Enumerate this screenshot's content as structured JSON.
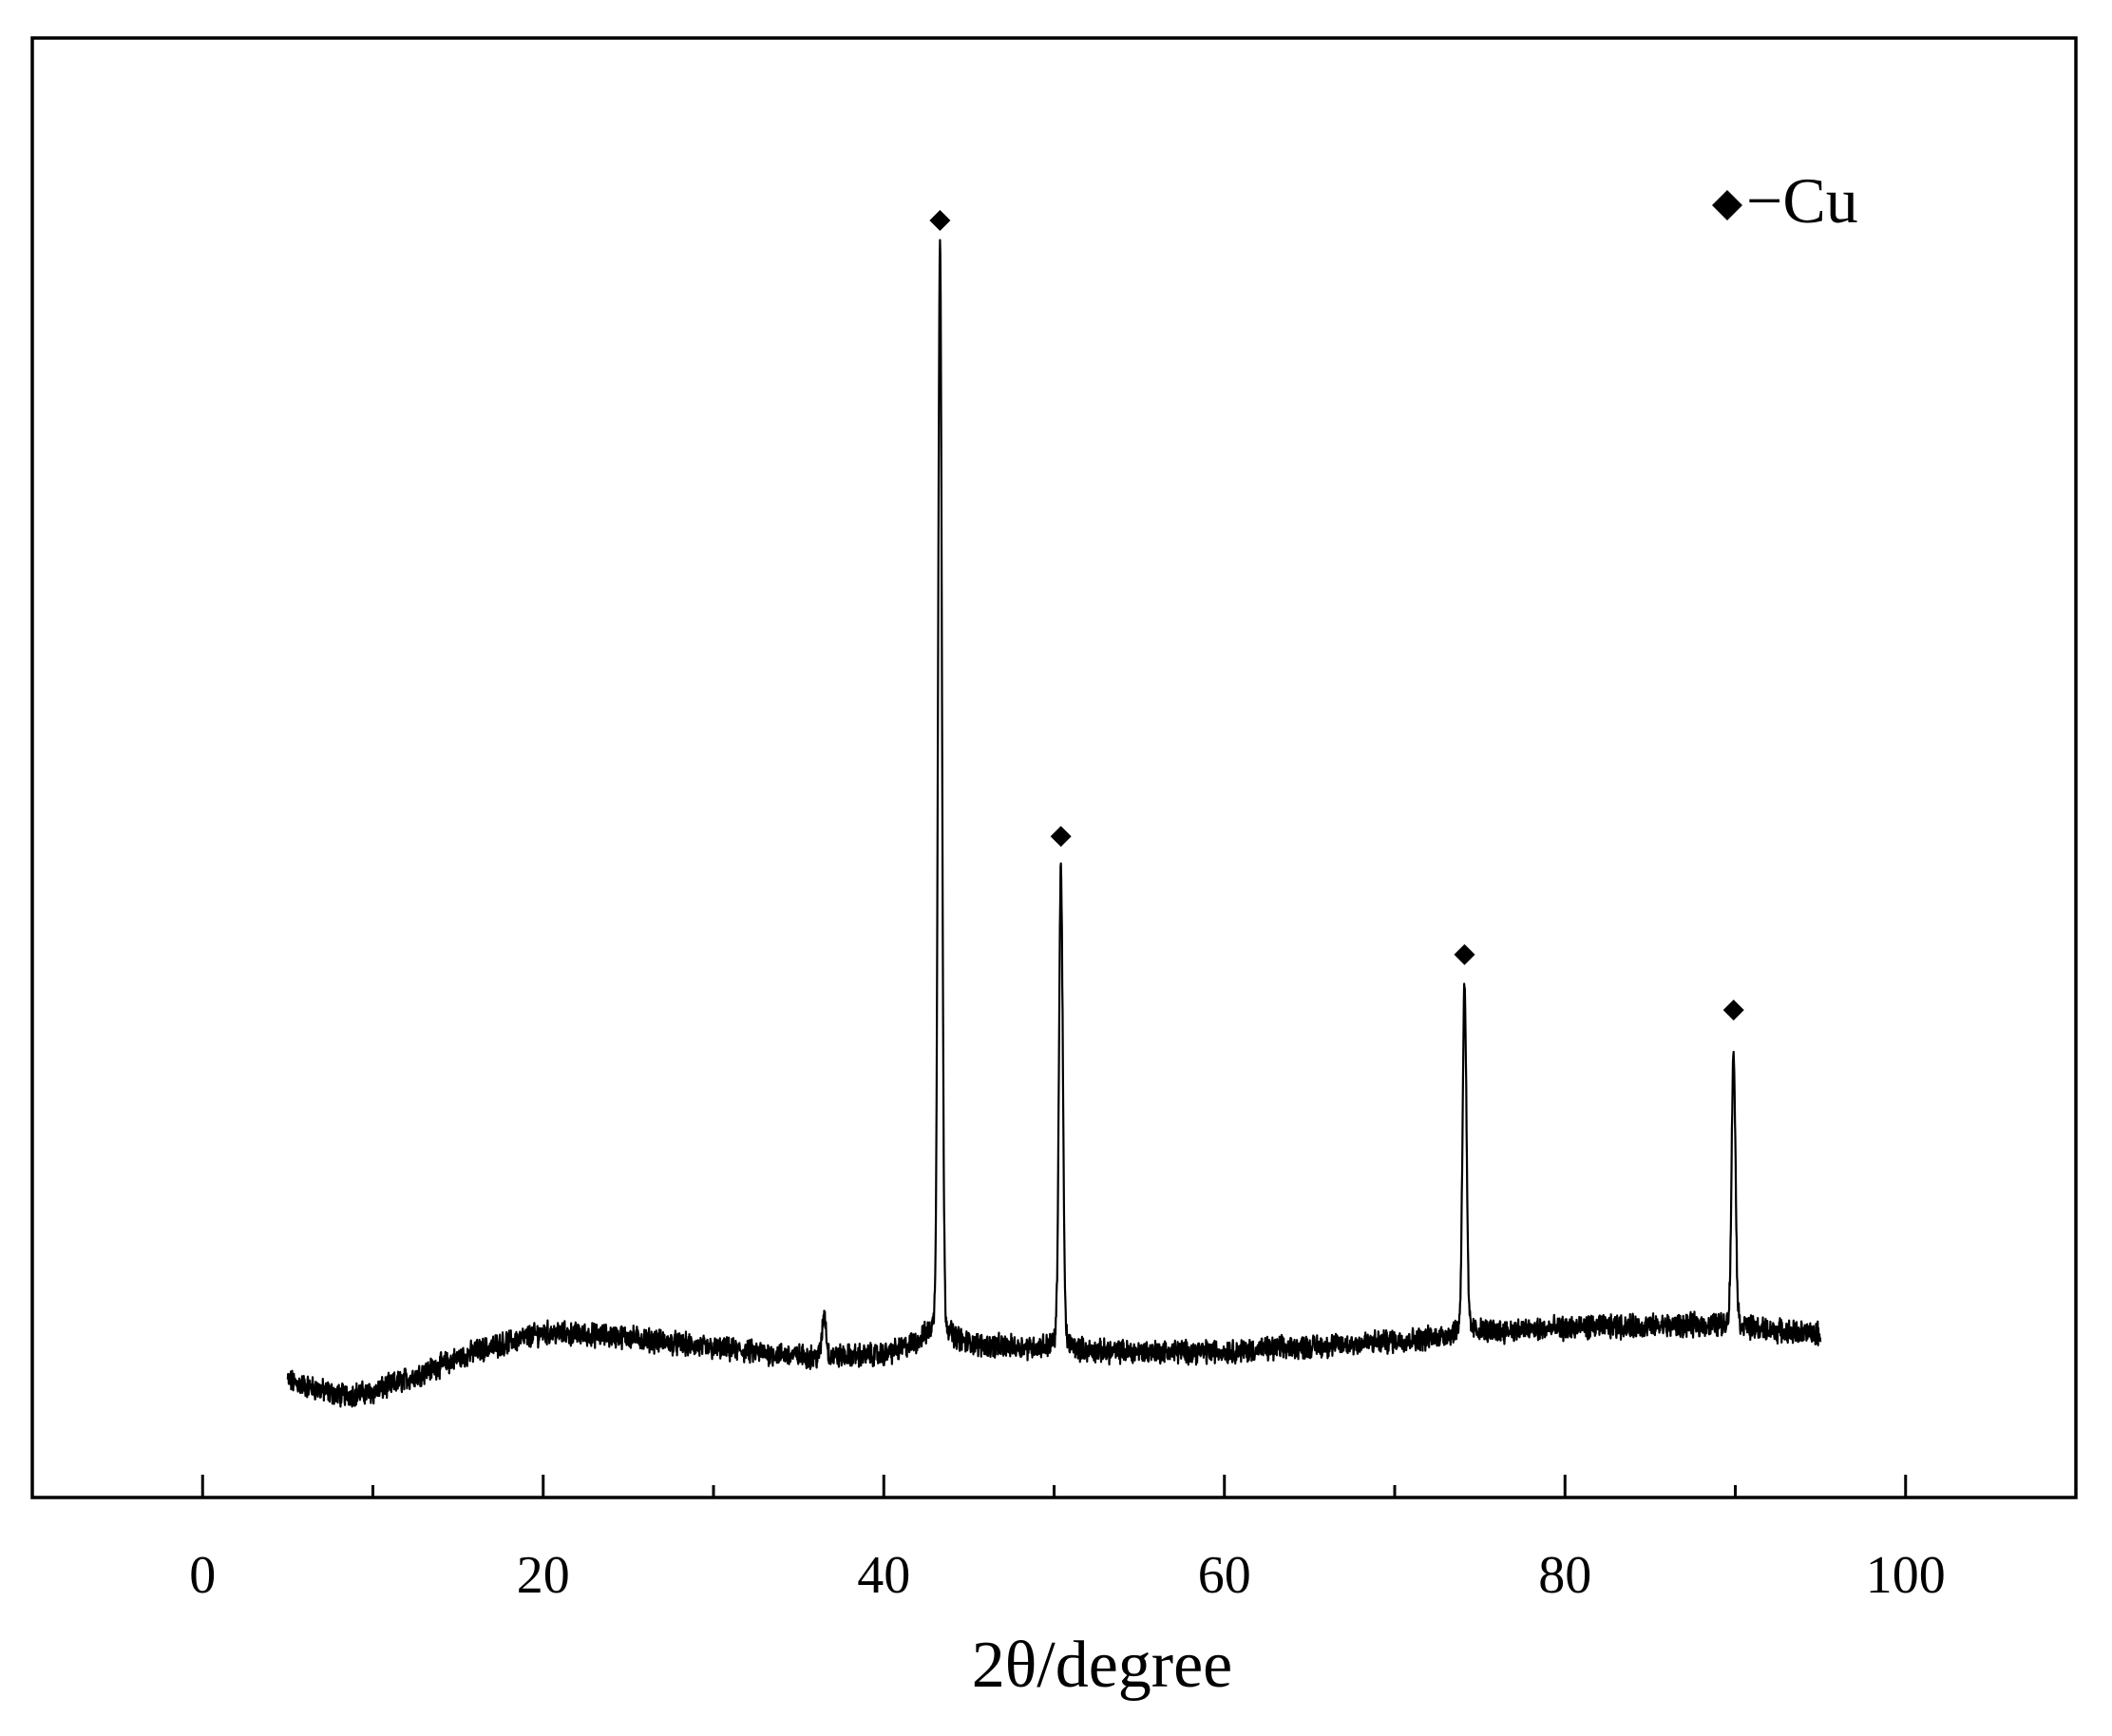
{
  "chart_data": {
    "type": "line",
    "title": "",
    "xlabel": "2θ/degree",
    "ylabel": "",
    "xlim": [
      -10,
      110
    ],
    "ylim": [
      0,
      100
    ],
    "x_ticks": [
      0,
      20,
      40,
      60,
      80,
      100
    ],
    "x_minor_ticks": [
      10,
      30,
      50,
      70,
      90
    ],
    "y_ticks_shown": false,
    "grid": false,
    "legend": {
      "position": "top-right",
      "marker": "diamond",
      "label": "−Cu"
    },
    "series": [
      {
        "x_range": [
          5,
          95
        ],
        "baseline": [
          [
            5,
            8.0
          ],
          [
            8,
            7.0
          ],
          [
            10,
            7.2
          ],
          [
            13,
            8.6
          ],
          [
            16,
            10.0
          ],
          [
            20,
            11.3
          ],
          [
            25,
            11.0
          ],
          [
            30,
            10.2
          ],
          [
            36,
            9.6
          ],
          [
            40,
            9.8
          ],
          [
            42.3,
            10.6
          ],
          [
            44.2,
            10.5
          ],
          [
            48,
            10.3
          ],
          [
            52,
            10.0
          ],
          [
            60,
            10.0
          ],
          [
            66,
            10.4
          ],
          [
            72,
            10.9
          ],
          [
            76,
            11.4
          ],
          [
            82,
            11.7
          ],
          [
            88,
            11.8
          ],
          [
            95,
            11.2
          ]
        ],
        "peaks": [
          {
            "x": 43.3,
            "y": 84.0
          },
          {
            "x": 50.4,
            "y": 42.0
          },
          {
            "x": 74.1,
            "y": 34.5
          },
          {
            "x": 89.9,
            "y": 30.0
          },
          {
            "x": 36.5,
            "y": 12.5
          }
        ]
      }
    ],
    "markers": [
      {
        "x": 43.3,
        "y": 87.5,
        "symbol": "diamond"
      },
      {
        "x": 50.4,
        "y": 45.3,
        "symbol": "diamond"
      },
      {
        "x": 74.1,
        "y": 37.2,
        "symbol": "diamond"
      },
      {
        "x": 89.9,
        "y": 33.4,
        "symbol": "diamond"
      }
    ]
  }
}
